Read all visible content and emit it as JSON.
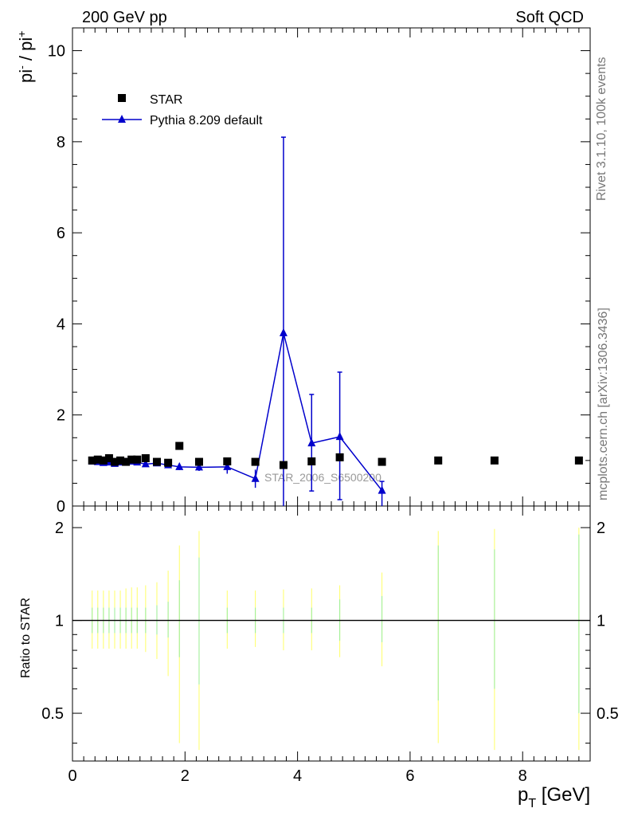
{
  "header": {
    "left": "200 GeV pp",
    "right": "Soft QCD"
  },
  "side": {
    "rivet": "Rivet 3.1.10,  100k events",
    "mcplots": "mcplots.cern.ch [arXiv:1306.3436]"
  },
  "watermark": "STAR_2006_S6500200",
  "colors": {
    "data": "#000000",
    "mc": "#0000cc",
    "band_stat": "#99ee99",
    "band_tot": "#ffff66"
  },
  "chart_data": [
    {
      "type": "scatter",
      "ylabel": "pi- / pi+",
      "xlim": [
        0,
        9.2
      ],
      "ylim": [
        0,
        10.5
      ],
      "y_ticks": [
        "0",
        "2",
        "4",
        "6",
        "8",
        "10"
      ],
      "legend": {
        "placement": "top-left",
        "entries": [
          "STAR",
          "Pythia 8.209 default"
        ]
      },
      "series": [
        {
          "name": "STAR",
          "marker": "square",
          "x": [
            0.35,
            0.45,
            0.55,
            0.65,
            0.75,
            0.85,
            0.95,
            1.05,
            1.15,
            1.3,
            1.5,
            1.7,
            1.9,
            2.25,
            2.75,
            3.25,
            3.75,
            4.25,
            4.75,
            5.5,
            6.5,
            7.5,
            9.0
          ],
          "y": [
            1.0,
            1.02,
            1.0,
            1.05,
            0.97,
            1.0,
            0.97,
            1.02,
            1.02,
            1.05,
            0.97,
            0.95,
            1.32,
            0.97,
            0.98,
            0.97,
            0.9,
            0.98,
            1.07,
            0.97,
            1.0,
            1.0,
            1.0
          ]
        },
        {
          "name": "Pythia 8.209 default",
          "marker": "triangle",
          "x": [
            0.35,
            0.45,
            0.55,
            0.65,
            0.75,
            0.85,
            0.95,
            1.05,
            1.15,
            1.3,
            1.5,
            1.7,
            1.9,
            2.25,
            2.75,
            3.25,
            3.75,
            4.25,
            4.75,
            5.5
          ],
          "y": [
            0.98,
            0.97,
            0.95,
            0.96,
            0.93,
            0.96,
            0.96,
            0.98,
            0.96,
            0.92,
            0.94,
            0.9,
            0.86,
            0.85,
            0.86,
            0.6,
            3.8,
            1.38,
            1.52,
            0.34
          ],
          "yerr_low": [
            0.04,
            0.04,
            0.04,
            0.04,
            0.04,
            0.04,
            0.04,
            0.04,
            0.04,
            0.04,
            0.05,
            0.05,
            0.07,
            0.08,
            0.15,
            0.2,
            3.8,
            1.05,
            1.38,
            0.34
          ],
          "yerr_high": [
            0.04,
            0.04,
            0.04,
            0.04,
            0.04,
            0.04,
            0.04,
            0.04,
            0.04,
            0.04,
            0.05,
            0.05,
            0.07,
            0.08,
            0.15,
            0.2,
            4.3,
            1.07,
            1.42,
            0.2
          ]
        }
      ]
    },
    {
      "type": "ratio",
      "ylabel": "Ratio to STAR",
      "xlabel": "p_T [GeV]",
      "xlim": [
        0,
        9.2
      ],
      "ylim": [
        0.35,
        2.35
      ],
      "log_y": true,
      "y_ticks": [
        "0.5",
        "1",
        "2"
      ],
      "x_ticks": [
        "0",
        "2",
        "4",
        "6",
        "8"
      ],
      "reference_line": 1,
      "bands": {
        "x": [
          0.35,
          0.45,
          0.55,
          0.65,
          0.75,
          0.85,
          0.95,
          1.05,
          1.15,
          1.3,
          1.5,
          1.7,
          1.9,
          2.25,
          2.75,
          3.25,
          3.75,
          4.25,
          4.75,
          5.5,
          6.5,
          7.5,
          9.0
        ],
        "stat_low": [
          0.91,
          0.91,
          0.91,
          0.91,
          0.91,
          0.91,
          0.91,
          0.91,
          0.91,
          0.91,
          0.9,
          0.88,
          0.76,
          0.62,
          0.91,
          0.91,
          0.91,
          0.91,
          0.86,
          0.85,
          0.55,
          0.6,
          0.5
        ],
        "stat_high": [
          1.1,
          1.1,
          1.1,
          1.1,
          1.1,
          1.1,
          1.1,
          1.1,
          1.1,
          1.1,
          1.12,
          1.15,
          1.35,
          1.6,
          1.1,
          1.1,
          1.1,
          1.1,
          1.17,
          1.2,
          1.75,
          1.7,
          1.9
        ],
        "total_low": [
          0.81,
          0.81,
          0.81,
          0.81,
          0.81,
          0.81,
          0.81,
          0.81,
          0.81,
          0.79,
          0.75,
          0.66,
          0.4,
          0.38,
          0.81,
          0.82,
          0.8,
          0.8,
          0.76,
          0.71,
          0.4,
          0.38,
          0.38
        ],
        "total_high": [
          1.25,
          1.25,
          1.25,
          1.25,
          1.25,
          1.25,
          1.27,
          1.28,
          1.28,
          1.3,
          1.33,
          1.45,
          1.75,
          1.95,
          1.25,
          1.25,
          1.26,
          1.27,
          1.3,
          1.43,
          1.95,
          1.98,
          2.0
        ]
      }
    }
  ]
}
